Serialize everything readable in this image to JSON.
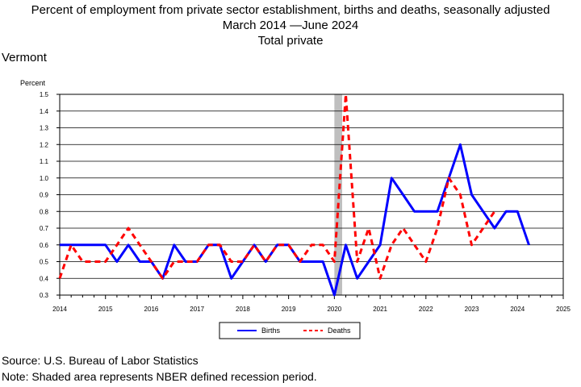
{
  "title_lines": [
    "Percent of employment from private sector establishment, births and deaths, seasonally adjusted",
    "March 2014 —June 2024",
    "Total private"
  ],
  "area": "Vermont",
  "footer": {
    "source": "Source: U.S. Bureau of Labor Statistics",
    "note": "Note: Shaded area represents NBER defined recession period."
  },
  "chart_data": {
    "type": "line",
    "ylabel": "Percent",
    "xlabel": "",
    "xlim": [
      2014,
      2025
    ],
    "ylim": [
      0.3,
      1.5
    ],
    "x_ticks": [
      "2014",
      "2015",
      "2016",
      "2017",
      "2018",
      "2019",
      "2020",
      "2021",
      "2022",
      "2023",
      "2024",
      "2025"
    ],
    "y_ticks": [
      "0.3",
      "0.4",
      "0.5",
      "0.6",
      "0.7",
      "0.8",
      "0.9",
      "1.0",
      "1.1",
      "1.2",
      "1.3",
      "1.4",
      "1.5"
    ],
    "grid": "horizontal",
    "legend_position": "bottom",
    "recession": [
      2020.0,
      2020.17
    ],
    "series": [
      {
        "name": "Births",
        "color": "#0000ff",
        "style": "solid",
        "x": [
          2014.0,
          2014.25,
          2014.5,
          2014.75,
          2015.0,
          2015.25,
          2015.5,
          2015.75,
          2016.0,
          2016.25,
          2016.5,
          2016.75,
          2017.0,
          2017.25,
          2017.5,
          2017.75,
          2018.0,
          2018.25,
          2018.5,
          2018.75,
          2019.0,
          2019.25,
          2019.5,
          2019.75,
          2020.0,
          2020.25,
          2020.5,
          2020.75,
          2021.0,
          2021.25,
          2021.5,
          2021.75,
          2022.0,
          2022.25,
          2022.5,
          2022.75,
          2023.0,
          2023.25,
          2023.5,
          2023.75,
          2024.0,
          2024.25
        ],
        "y": [
          0.6,
          0.6,
          0.6,
          0.6,
          0.6,
          0.5,
          0.6,
          0.5,
          0.5,
          0.4,
          0.6,
          0.5,
          0.5,
          0.6,
          0.6,
          0.4,
          0.5,
          0.6,
          0.5,
          0.6,
          0.6,
          0.5,
          0.5,
          0.5,
          0.3,
          0.6,
          0.4,
          0.5,
          0.6,
          1.0,
          0.9,
          0.8,
          0.8,
          0.8,
          1.0,
          1.2,
          0.9,
          0.8,
          0.7,
          0.8,
          0.8,
          0.6
        ]
      },
      {
        "name": "Deaths",
        "color": "#ff0000",
        "style": "dashed",
        "x": [
          2014.0,
          2014.25,
          2014.5,
          2014.75,
          2015.0,
          2015.25,
          2015.5,
          2015.75,
          2016.0,
          2016.25,
          2016.5,
          2016.75,
          2017.0,
          2017.25,
          2017.5,
          2017.75,
          2018.0,
          2018.25,
          2018.5,
          2018.75,
          2019.0,
          2019.25,
          2019.5,
          2019.75,
          2020.0,
          2020.25,
          2020.5,
          2020.75,
          2021.0,
          2021.25,
          2021.5,
          2021.75,
          2022.0,
          2022.25,
          2022.5,
          2022.75,
          2023.0,
          2023.25,
          2023.5
        ],
        "y": [
          0.4,
          0.6,
          0.5,
          0.5,
          0.5,
          0.6,
          0.7,
          0.6,
          0.5,
          0.4,
          0.5,
          0.5,
          0.5,
          0.6,
          0.6,
          0.5,
          0.5,
          0.6,
          0.5,
          0.6,
          0.6,
          0.5,
          0.6,
          0.6,
          0.5,
          1.5,
          0.5,
          0.7,
          0.4,
          0.6,
          0.7,
          0.6,
          0.5,
          0.7,
          1.0,
          0.9,
          0.6,
          0.7,
          0.8
        ]
      }
    ]
  }
}
